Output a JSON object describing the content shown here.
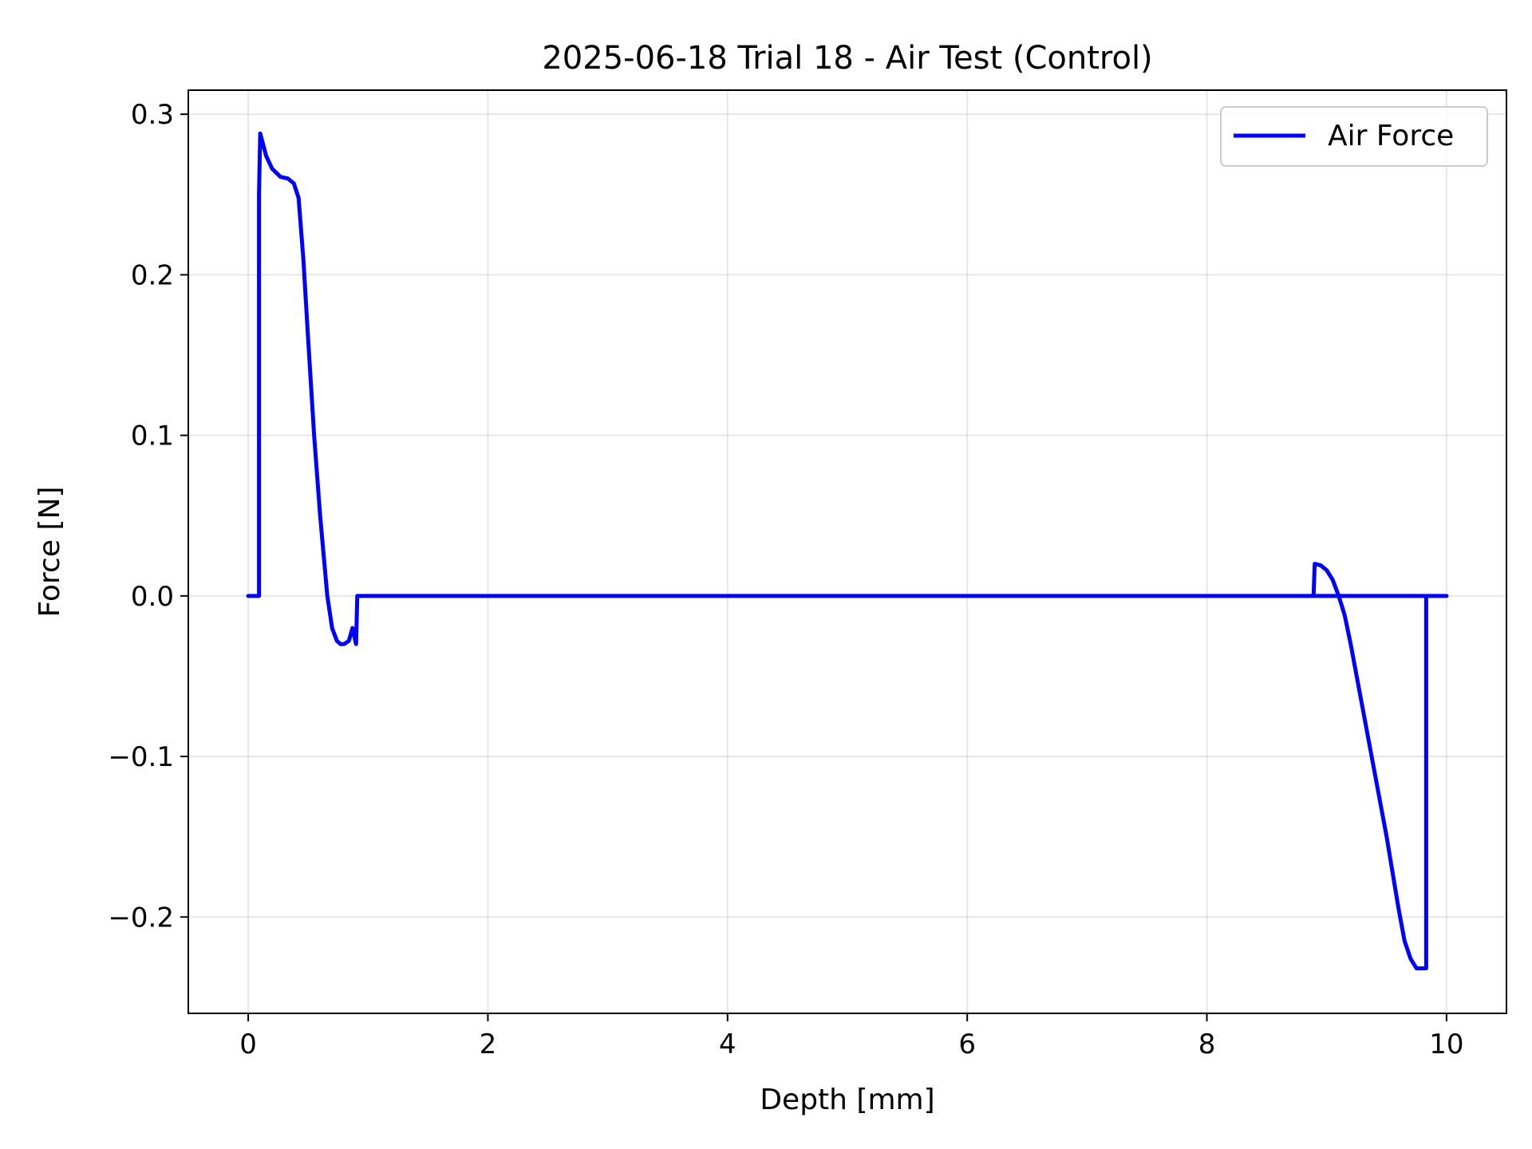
{
  "chart_data": {
    "type": "line",
    "title": "2025-06-18 Trial 18 - Air Test (Control)",
    "xlabel": "Depth [mm]",
    "ylabel": "Force [N]",
    "xlim": [
      -0.5,
      10.5
    ],
    "ylim": [
      -0.26,
      0.315
    ],
    "xticks": [
      0,
      2,
      4,
      6,
      8,
      10
    ],
    "xtick_labels": [
      "0",
      "2",
      "4",
      "6",
      "8",
      "10"
    ],
    "yticks": [
      0.3,
      0.2,
      0.1,
      0.0,
      -0.1,
      -0.2
    ],
    "ytick_labels": [
      "0.3",
      "0.2",
      "0.1",
      "0.0",
      "−0.1",
      "−0.2"
    ],
    "grid": true,
    "legend_position": "upper right",
    "series": [
      {
        "name": "Air Force",
        "color": "#0000ff",
        "x": [
          0.0,
          0.09,
          0.09,
          0.1,
          0.15,
          0.2,
          0.27,
          0.33,
          0.38,
          0.42,
          0.46,
          0.5,
          0.55,
          0.6,
          0.66,
          0.7,
          0.74,
          0.77,
          0.8,
          0.84,
          0.87,
          0.9,
          0.91,
          0.92,
          10.0,
          8.89,
          8.9,
          8.95,
          9.0,
          9.05,
          9.1,
          9.15,
          9.2,
          9.3,
          9.4,
          9.5,
          9.6,
          9.65,
          9.7,
          9.75,
          9.8,
          9.83,
          9.83,
          9.84
        ],
        "y": [
          0.0,
          0.0,
          0.25,
          0.288,
          0.274,
          0.266,
          0.261,
          0.26,
          0.257,
          0.248,
          0.21,
          0.16,
          0.1,
          0.05,
          0.0,
          -0.02,
          -0.028,
          -0.03,
          -0.03,
          -0.028,
          -0.02,
          -0.03,
          0.0,
          0.0,
          0.0,
          0.0,
          0.02,
          0.019,
          0.016,
          0.01,
          0.0,
          -0.012,
          -0.03,
          -0.07,
          -0.11,
          -0.15,
          -0.195,
          -0.215,
          -0.226,
          -0.232,
          -0.232,
          -0.232,
          0.0,
          0.0
        ]
      }
    ]
  }
}
